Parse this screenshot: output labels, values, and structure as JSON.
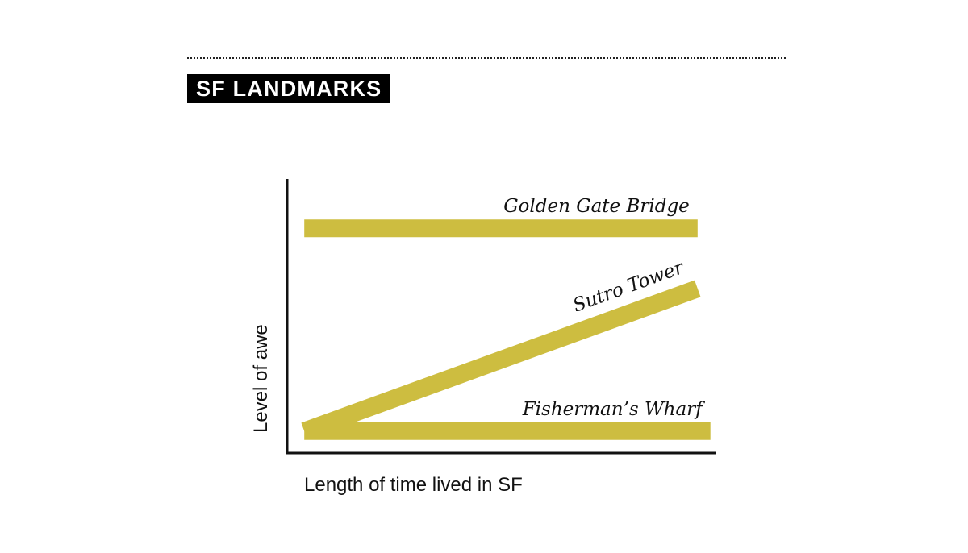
{
  "header": {
    "title": "SF LANDMARKS"
  },
  "chart_data": {
    "type": "line",
    "title": "SF LANDMARKS",
    "xlabel": "Length of time lived in SF",
    "ylabel": "Level of awe",
    "x_ticks": false,
    "y_ticks": false,
    "grid": false,
    "legend": "direct labels at line ends",
    "line_color": "#cdbd40",
    "xlim": [
      0,
      100
    ],
    "ylim": [
      0,
      100
    ],
    "series": [
      {
        "name": "Golden Gate Bridge",
        "x": [
          4,
          96
        ],
        "y": [
          82,
          82
        ]
      },
      {
        "name": "Sutro Tower",
        "x": [
          4,
          96
        ],
        "y": [
          8,
          60
        ]
      },
      {
        "name": "Fisherman’s Wharf",
        "x": [
          4,
          99
        ],
        "y": [
          8,
          8
        ]
      }
    ]
  }
}
